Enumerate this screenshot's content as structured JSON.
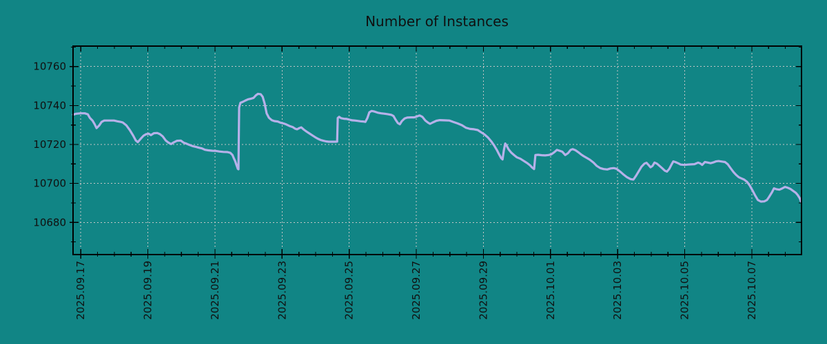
{
  "page": {
    "background_color": "#118585",
    "text_color": "#101010"
  },
  "chart_data": {
    "type": "line",
    "title": "Number of Instances",
    "xlabel": "",
    "ylabel": "",
    "legend_position": "none",
    "grid": true,
    "grid_color": "#c6c6c6",
    "axis_color": "#000000",
    "line_color": "#b6b1e9",
    "x_unit": "days since 2025-09-17 00:00",
    "x_range_days": [
      -0.23,
      21.48
    ],
    "ylim": [
      10663.5,
      10770.5
    ],
    "y_ticks": [
      10680,
      10700,
      10720,
      10740,
      10760
    ],
    "y_minor_step": 10,
    "x_minor_step_days": 0.5,
    "x_ticks": [
      {
        "day": 0,
        "label": "2025.09.17"
      },
      {
        "day": 2,
        "label": "2025.09.19"
      },
      {
        "day": 4,
        "label": "2025.09.21"
      },
      {
        "day": 6,
        "label": "2025.09.23"
      },
      {
        "day": 8,
        "label": "2025.09.25"
      },
      {
        "day": 10,
        "label": "2025.09.27"
      },
      {
        "day": 12,
        "label": "2025.09.29"
      },
      {
        "day": 14,
        "label": "2025.10.01"
      },
      {
        "day": 16,
        "label": "2025.10.03"
      },
      {
        "day": 18,
        "label": "2025.10.05"
      },
      {
        "day": 20,
        "label": "2025.10.07"
      }
    ],
    "series": [
      {
        "name": "Number of Instances",
        "color": "#b6b1e9",
        "points": [
          [
            -0.23,
            10735.3
          ],
          [
            -0.14,
            10735.8
          ],
          [
            0,
            10736
          ],
          [
            0.12,
            10736
          ],
          [
            0.21,
            10735.5
          ],
          [
            0.27,
            10733.7
          ],
          [
            0.35,
            10732.3
          ],
          [
            0.41,
            10730.5
          ],
          [
            0.47,
            10728.4
          ],
          [
            0.55,
            10729.8
          ],
          [
            0.62,
            10731.6
          ],
          [
            0.7,
            10732.3
          ],
          [
            0.84,
            10732.3
          ],
          [
            0.99,
            10732.3
          ],
          [
            1.09,
            10731.9
          ],
          [
            1.19,
            10731.6
          ],
          [
            1.25,
            10731.3
          ],
          [
            1.36,
            10729.8
          ],
          [
            1.46,
            10727.4
          ],
          [
            1.56,
            10724.6
          ],
          [
            1.64,
            10722.1
          ],
          [
            1.7,
            10721.2
          ],
          [
            1.79,
            10723
          ],
          [
            1.87,
            10724.5
          ],
          [
            1.95,
            10725.3
          ],
          [
            2.03,
            10725.5
          ],
          [
            2.09,
            10724.8
          ],
          [
            2.18,
            10725.8
          ],
          [
            2.28,
            10725.9
          ],
          [
            2.36,
            10725.3
          ],
          [
            2.44,
            10724.2
          ],
          [
            2.53,
            10722.1
          ],
          [
            2.61,
            10721
          ],
          [
            2.69,
            10720.2
          ],
          [
            2.77,
            10721.1
          ],
          [
            2.87,
            10721.9
          ],
          [
            2.98,
            10722
          ],
          [
            3.06,
            10721
          ],
          [
            3.14,
            10720.5
          ],
          [
            3.22,
            10719.9
          ],
          [
            3.33,
            10719.2
          ],
          [
            3.43,
            10718.8
          ],
          [
            3.53,
            10718.3
          ],
          [
            3.61,
            10718
          ],
          [
            3.7,
            10717.3
          ],
          [
            3.8,
            10717
          ],
          [
            3.92,
            10716.8
          ],
          [
            4.02,
            10716.7
          ],
          [
            4.13,
            10716.4
          ],
          [
            4.25,
            10716.2
          ],
          [
            4.37,
            10716.1
          ],
          [
            4.46,
            10715.7
          ],
          [
            4.52,
            10714.6
          ],
          [
            4.56,
            10713
          ],
          [
            4.6,
            10711.5
          ],
          [
            4.64,
            10709.5
          ],
          [
            4.68,
            10707.5
          ],
          [
            4.7,
            10707.3
          ],
          [
            4.72,
            10739
          ],
          [
            4.76,
            10741.4
          ],
          [
            4.83,
            10741.9
          ],
          [
            4.91,
            10742.6
          ],
          [
            4.99,
            10743.2
          ],
          [
            5.07,
            10743.5
          ],
          [
            5.15,
            10743.9
          ],
          [
            5.22,
            10745.2
          ],
          [
            5.28,
            10746
          ],
          [
            5.36,
            10745.8
          ],
          [
            5.42,
            10744.5
          ],
          [
            5.48,
            10741
          ],
          [
            5.54,
            10736
          ],
          [
            5.61,
            10733.7
          ],
          [
            5.69,
            10732.5
          ],
          [
            5.77,
            10732
          ],
          [
            5.87,
            10731.8
          ],
          [
            5.95,
            10731.2
          ],
          [
            6.04,
            10730.8
          ],
          [
            6.12,
            10730.3
          ],
          [
            6.22,
            10729.5
          ],
          [
            6.32,
            10728.9
          ],
          [
            6.39,
            10728.1
          ],
          [
            6.45,
            10727.8
          ],
          [
            6.51,
            10728.4
          ],
          [
            6.57,
            10728.8
          ],
          [
            6.65,
            10727.6
          ],
          [
            6.73,
            10726.6
          ],
          [
            6.82,
            10725.6
          ],
          [
            6.9,
            10724.7
          ],
          [
            6.98,
            10723.8
          ],
          [
            7.06,
            10723
          ],
          [
            7.15,
            10722.3
          ],
          [
            7.23,
            10721.9
          ],
          [
            7.31,
            10721.6
          ],
          [
            7.39,
            10721.4
          ],
          [
            7.49,
            10721.4
          ],
          [
            7.6,
            10721.4
          ],
          [
            7.64,
            10721.5
          ],
          [
            7.66,
            10733.6
          ],
          [
            7.7,
            10734.2
          ],
          [
            7.76,
            10733.5
          ],
          [
            7.84,
            10733.2
          ],
          [
            7.93,
            10733.1
          ],
          [
            8.01,
            10732.7
          ],
          [
            8.09,
            10732.4
          ],
          [
            8.17,
            10732.3
          ],
          [
            8.25,
            10732.1
          ],
          [
            8.34,
            10731.9
          ],
          [
            8.42,
            10731.8
          ],
          [
            8.48,
            10731.6
          ],
          [
            8.54,
            10733.5
          ],
          [
            8.6,
            10736.5
          ],
          [
            8.67,
            10737.2
          ],
          [
            8.75,
            10736.9
          ],
          [
            8.85,
            10736.3
          ],
          [
            8.95,
            10736
          ],
          [
            9.06,
            10735.8
          ],
          [
            9.16,
            10735.5
          ],
          [
            9.26,
            10735.2
          ],
          [
            9.32,
            10734.6
          ],
          [
            9.38,
            10732.8
          ],
          [
            9.45,
            10731
          ],
          [
            9.51,
            10730.4
          ],
          [
            9.57,
            10732
          ],
          [
            9.65,
            10733.3
          ],
          [
            9.73,
            10733.8
          ],
          [
            9.84,
            10733.9
          ],
          [
            9.94,
            10733.9
          ],
          [
            10.02,
            10734.4
          ],
          [
            10.1,
            10734.9
          ],
          [
            10.18,
            10734.2
          ],
          [
            10.27,
            10732.3
          ],
          [
            10.35,
            10731.2
          ],
          [
            10.41,
            10730.6
          ],
          [
            10.49,
            10731.3
          ],
          [
            10.6,
            10732.2
          ],
          [
            10.7,
            10732.5
          ],
          [
            10.84,
            10732.4
          ],
          [
            10.99,
            10732.3
          ],
          [
            11.11,
            10731.5
          ],
          [
            11.23,
            10730.8
          ],
          [
            11.36,
            10729.9
          ],
          [
            11.48,
            10728.6
          ],
          [
            11.6,
            10728
          ],
          [
            11.72,
            10727.8
          ],
          [
            11.83,
            10727.4
          ],
          [
            11.93,
            10726.3
          ],
          [
            12.03,
            10725.2
          ],
          [
            12.14,
            10723.5
          ],
          [
            12.24,
            10721.5
          ],
          [
            12.32,
            10719.5
          ],
          [
            12.4,
            10717.2
          ],
          [
            12.46,
            10715.2
          ],
          [
            12.53,
            10713
          ],
          [
            12.57,
            10712.3
          ],
          [
            12.61,
            10717
          ],
          [
            12.65,
            10720.5
          ],
          [
            12.69,
            10719.5
          ],
          [
            12.75,
            10717.5
          ],
          [
            12.83,
            10715.8
          ],
          [
            12.92,
            10714.5
          ],
          [
            13,
            10713.4
          ],
          [
            13.1,
            10712.7
          ],
          [
            13.2,
            10711.6
          ],
          [
            13.31,
            10710.4
          ],
          [
            13.39,
            10709.3
          ],
          [
            13.45,
            10708.2
          ],
          [
            13.51,
            10707.4
          ],
          [
            13.55,
            10714.6
          ],
          [
            13.63,
            10714.7
          ],
          [
            13.74,
            10714.5
          ],
          [
            13.84,
            10714.4
          ],
          [
            13.94,
            10714.6
          ],
          [
            14.02,
            10714.9
          ],
          [
            14.11,
            10716
          ],
          [
            14.19,
            10717.2
          ],
          [
            14.27,
            10716.8
          ],
          [
            14.35,
            10716.3
          ],
          [
            14.44,
            10714.6
          ],
          [
            14.52,
            10715.5
          ],
          [
            14.6,
            10717.2
          ],
          [
            14.66,
            10717.6
          ],
          [
            14.74,
            10717.1
          ],
          [
            14.83,
            10716
          ],
          [
            14.91,
            10714.9
          ],
          [
            14.99,
            10714
          ],
          [
            15.07,
            10713.2
          ],
          [
            15.17,
            10712.2
          ],
          [
            15.28,
            10710.7
          ],
          [
            15.38,
            10709
          ],
          [
            15.48,
            10707.9
          ],
          [
            15.58,
            10707.4
          ],
          [
            15.69,
            10707.2
          ],
          [
            15.79,
            10707.7
          ],
          [
            15.89,
            10707.9
          ],
          [
            15.97,
            10707.5
          ],
          [
            16.08,
            10706
          ],
          [
            16.18,
            10704.5
          ],
          [
            16.28,
            10703.2
          ],
          [
            16.39,
            10702.2
          ],
          [
            16.47,
            10702
          ],
          [
            16.55,
            10704
          ],
          [
            16.63,
            10706.3
          ],
          [
            16.71,
            10708.6
          ],
          [
            16.8,
            10710.2
          ],
          [
            16.86,
            10710.6
          ],
          [
            16.92,
            10709.5
          ],
          [
            16.98,
            10708.3
          ],
          [
            17.04,
            10709
          ],
          [
            17.1,
            10710.7
          ],
          [
            17.17,
            10710.2
          ],
          [
            17.25,
            10709
          ],
          [
            17.33,
            10707.8
          ],
          [
            17.41,
            10706.5
          ],
          [
            17.47,
            10706.1
          ],
          [
            17.54,
            10707.5
          ],
          [
            17.6,
            10709.5
          ],
          [
            17.66,
            10711.3
          ],
          [
            17.72,
            10711
          ],
          [
            17.8,
            10710.4
          ],
          [
            17.88,
            10709.7
          ],
          [
            17.99,
            10709.5
          ],
          [
            18.09,
            10709.7
          ],
          [
            18.19,
            10709.8
          ],
          [
            18.29,
            10709.9
          ],
          [
            18.4,
            10710.7
          ],
          [
            18.46,
            10710.3
          ],
          [
            18.52,
            10709.5
          ],
          [
            18.6,
            10711
          ],
          [
            18.69,
            10710.7
          ],
          [
            18.77,
            10710.4
          ],
          [
            18.85,
            10710.8
          ],
          [
            18.93,
            10711.3
          ],
          [
            19.01,
            10711.5
          ],
          [
            19.12,
            10711.2
          ],
          [
            19.2,
            10711
          ],
          [
            19.28,
            10709.9
          ],
          [
            19.36,
            10708
          ],
          [
            19.45,
            10705.9
          ],
          [
            19.53,
            10704.4
          ],
          [
            19.61,
            10703.2
          ],
          [
            19.69,
            10702.6
          ],
          [
            19.77,
            10702
          ],
          [
            19.86,
            10700.8
          ],
          [
            19.94,
            10698.9
          ],
          [
            20.02,
            10696.4
          ],
          [
            20.1,
            10693.8
          ],
          [
            20.18,
            10691.5
          ],
          [
            20.27,
            10690.7
          ],
          [
            20.37,
            10690.8
          ],
          [
            20.45,
            10691.5
          ],
          [
            20.51,
            10693
          ],
          [
            20.6,
            10695.5
          ],
          [
            20.66,
            10697.5
          ],
          [
            20.74,
            10697
          ],
          [
            20.82,
            10696.8
          ],
          [
            20.9,
            10697.4
          ],
          [
            20.99,
            10698.2
          ],
          [
            21.07,
            10697.8
          ],
          [
            21.15,
            10697.2
          ],
          [
            21.23,
            10696.2
          ],
          [
            21.31,
            10695.2
          ],
          [
            21.37,
            10694
          ],
          [
            21.43,
            10692.3
          ],
          [
            21.47,
            10690.5
          ]
        ]
      }
    ]
  }
}
